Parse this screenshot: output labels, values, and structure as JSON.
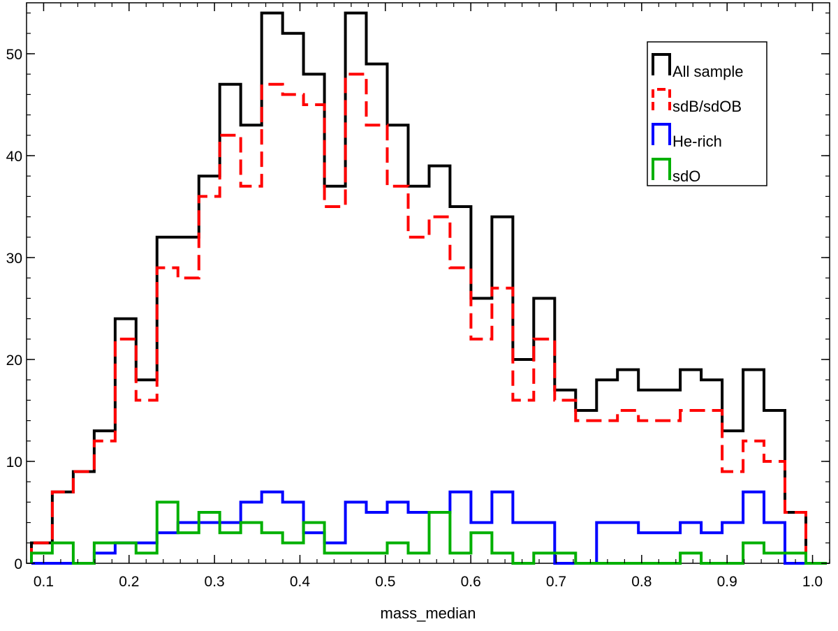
{
  "chart_data": {
    "type": "histogram",
    "title": "",
    "xlabel": "mass_median",
    "ylabel": "",
    "xlim": [
      0.08,
      1.02
    ],
    "ylim": [
      0,
      55
    ],
    "xticks": [
      "0.1",
      "0.2",
      "0.3",
      "0.4",
      "0.5",
      "0.6",
      "0.7",
      "0.8",
      "0.9",
      "1.0"
    ],
    "yticks": [
      "0",
      "10",
      "20",
      "30",
      "40",
      "50"
    ],
    "grid": false,
    "legend_position": "top-right",
    "bin_edges": [
      0.0857,
      0.1102,
      0.1347,
      0.1592,
      0.1837,
      0.2082,
      0.2327,
      0.2572,
      0.2817,
      0.3062,
      0.3307,
      0.3552,
      0.3797,
      0.4042,
      0.4287,
      0.4532,
      0.4777,
      0.5022,
      0.5267,
      0.5512,
      0.5757,
      0.6002,
      0.6247,
      0.6492,
      0.6737,
      0.6982,
      0.7227,
      0.7472,
      0.7717,
      0.7962,
      0.8207,
      0.8452,
      0.8697,
      0.8942,
      0.9187,
      0.9432,
      0.9677,
      0.9922,
      1.0167
    ],
    "series": [
      {
        "name": "All sample",
        "color": "#000000",
        "dash": "solid",
        "values": [
          2,
          7,
          9,
          13,
          24,
          18,
          32,
          32,
          38,
          47,
          43,
          54,
          52,
          48,
          37,
          54,
          49,
          43,
          37,
          39,
          35,
          26,
          34,
          20,
          26,
          17,
          15,
          18,
          19,
          17,
          17,
          19,
          18,
          13,
          19,
          15,
          5,
          0
        ]
      },
      {
        "name": "sdB/sdOB",
        "color": "#ff0000",
        "dash": "dashed",
        "values": [
          2,
          7,
          9,
          12,
          22,
          16,
          29,
          28,
          36,
          42,
          37,
          47,
          46,
          45,
          35,
          48,
          43,
          37,
          32,
          34,
          29,
          22,
          27,
          16,
          22,
          16,
          14,
          14,
          15,
          14,
          14,
          15,
          15,
          9,
          12,
          10,
          5,
          0
        ]
      },
      {
        "name": "He-rich",
        "color": "#0000ff",
        "dash": "solid",
        "values": [
          0,
          0,
          0,
          1,
          2,
          2,
          3,
          4,
          4,
          4,
          6,
          7,
          6,
          3,
          2,
          6,
          5,
          6,
          5,
          5,
          7,
          4,
          7,
          4,
          4,
          0,
          0,
          4,
          4,
          3,
          3,
          4,
          3,
          4,
          7,
          4,
          0,
          0
        ]
      },
      {
        "name": "sdO",
        "color": "#00b000",
        "dash": "solid",
        "values": [
          1,
          2,
          0,
          2,
          2,
          1,
          6,
          3,
          5,
          3,
          4,
          3,
          2,
          4,
          1,
          1,
          1,
          2,
          1,
          5,
          1,
          3,
          1,
          0,
          1,
          1,
          0,
          0,
          0,
          0,
          0,
          1,
          0,
          0,
          2,
          1,
          1,
          0
        ]
      }
    ]
  }
}
